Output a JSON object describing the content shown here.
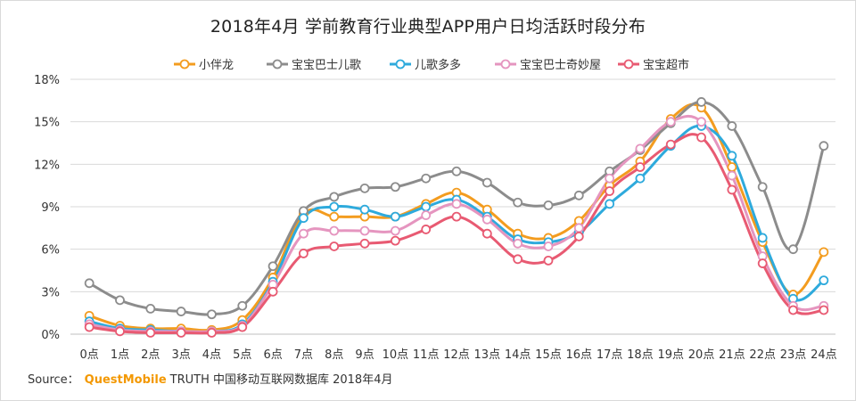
{
  "title": "2018年4月 学前教育行业典型APP用户日均活跃时段分布",
  "source": {
    "prefix": "Source：",
    "brand": "QuestMobile",
    "suffix": "TRUTH 中国移动互联网数据库 2018年4月"
  },
  "chart_data": {
    "type": "line",
    "title": "2018年4月 学前教育行业典型APP用户日均活跃时段分布",
    "categories": [
      "0点",
      "1点",
      "2点",
      "3点",
      "4点",
      "5点",
      "6点",
      "7点",
      "8点",
      "9点",
      "10点",
      "11点",
      "12点",
      "13点",
      "14点",
      "15点",
      "16点",
      "17点",
      "18点",
      "19点",
      "20点",
      "21点",
      "22点",
      "23点",
      "24点"
    ],
    "y_ticks": [
      "0%",
      "3%",
      "6%",
      "9%",
      "12%",
      "15%",
      "18%"
    ],
    "ylim": [
      0,
      18
    ],
    "grid": true,
    "legend_position": "top",
    "series": [
      {
        "name": "小伴龙",
        "color": "#f39c1f",
        "values": [
          1.3,
          0.6,
          0.4,
          0.4,
          0.3,
          1.0,
          4.0,
          8.5,
          8.3,
          8.3,
          8.3,
          9.2,
          10.0,
          8.8,
          7.1,
          6.8,
          8.0,
          10.5,
          12.2,
          15.2,
          16.0,
          11.8,
          6.5,
          2.8,
          5.8
        ]
      },
      {
        "name": "宝宝巴士儿歌",
        "color": "#8c8c8c",
        "values": [
          3.6,
          2.4,
          1.8,
          1.6,
          1.4,
          2.0,
          4.8,
          8.7,
          9.7,
          10.3,
          10.4,
          11.0,
          11.5,
          10.7,
          9.3,
          9.1,
          9.8,
          11.5,
          13.0,
          14.9,
          16.4,
          14.7,
          10.4,
          6.0,
          13.3
        ]
      },
      {
        "name": "儿歌多多",
        "color": "#2eaadc",
        "values": [
          0.9,
          0.4,
          0.3,
          0.2,
          0.2,
          0.7,
          3.7,
          8.2,
          9.0,
          8.8,
          8.3,
          9.0,
          9.5,
          8.3,
          6.7,
          6.5,
          7.2,
          9.2,
          11.0,
          13.3,
          14.7,
          12.6,
          6.8,
          2.5,
          3.8
        ]
      },
      {
        "name": "宝宝巴士奇妙屋",
        "color": "#e595bf",
        "values": [
          0.7,
          0.3,
          0.2,
          0.2,
          0.2,
          0.6,
          3.5,
          7.1,
          7.3,
          7.3,
          7.3,
          8.4,
          9.2,
          8.1,
          6.4,
          6.2,
          7.5,
          11.0,
          13.1,
          15.0,
          15.0,
          11.2,
          5.5,
          2.0,
          2.0
        ]
      },
      {
        "name": "宝宝超市",
        "color": "#e85a72",
        "values": [
          0.5,
          0.2,
          0.1,
          0.1,
          0.1,
          0.5,
          3.0,
          5.7,
          6.2,
          6.4,
          6.6,
          7.4,
          8.3,
          7.1,
          5.3,
          5.2,
          6.9,
          10.1,
          11.8,
          13.4,
          13.9,
          10.2,
          5.0,
          1.7,
          1.7
        ]
      }
    ]
  }
}
